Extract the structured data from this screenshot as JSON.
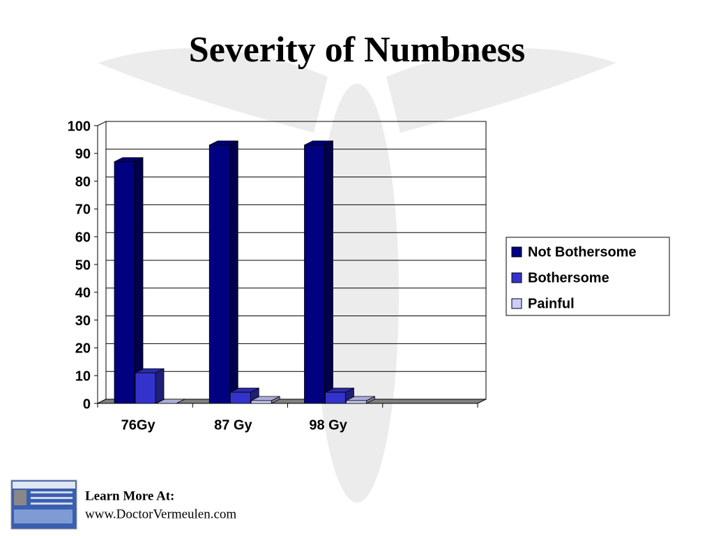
{
  "chart_data": {
    "type": "bar",
    "title": "Severity of Numbness",
    "categories": [
      "76Gy",
      "87 Gy",
      "98 Gy",
      null
    ],
    "series": [
      {
        "name": "Not Bothersome",
        "color": "#000080",
        "values": [
          87,
          93,
          93,
          null
        ]
      },
      {
        "name": "Bothersome",
        "color": "#3333cc",
        "values": [
          11,
          4,
          4,
          null
        ]
      },
      {
        "name": "Painful",
        "color": "#ccccff",
        "values": [
          0,
          1,
          1,
          null
        ]
      }
    ],
    "ylim": [
      0,
      100
    ],
    "yticks": [
      0,
      10,
      20,
      30,
      40,
      50,
      60,
      70,
      80,
      90,
      100
    ],
    "grid": true,
    "legend": "right"
  },
  "footer": {
    "heading": "Learn More At:",
    "url": "www.DoctorVermeulen.com"
  }
}
